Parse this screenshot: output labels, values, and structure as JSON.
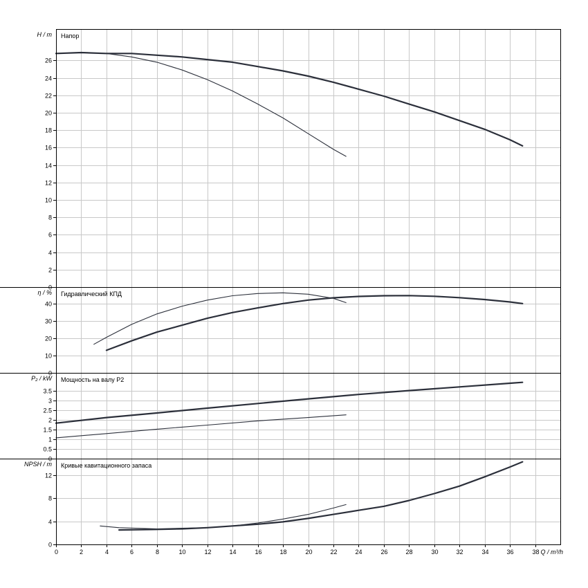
{
  "chart_data": {
    "type": "line",
    "colors": {
      "thick": "#2b2f3a",
      "thin": "#2b2f3a"
    },
    "x_axis": {
      "label": "Q / m³/h",
      "range": [
        0,
        40
      ],
      "ticks": [
        0,
        2,
        4,
        6,
        8,
        10,
        12,
        14,
        16,
        18,
        20,
        22,
        24,
        26,
        28,
        30,
        32,
        34,
        36,
        38
      ]
    },
    "panels": [
      {
        "id": "head",
        "title": "Напор",
        "ylabel": "H / m",
        "ylim": [
          0,
          29.6
        ],
        "ticks": [
          0,
          2,
          4,
          6,
          8,
          10,
          12,
          14,
          16,
          18,
          20,
          22,
          24,
          26
        ],
        "series": [
          {
            "style": "thick",
            "points": [
              [
                0,
                26.8
              ],
              [
                2,
                26.9
              ],
              [
                4,
                26.8
              ],
              [
                6,
                26.8
              ],
              [
                8,
                26.6
              ],
              [
                10,
                26.4
              ],
              [
                12,
                26.1
              ],
              [
                14,
                25.8
              ],
              [
                16,
                25.3
              ],
              [
                18,
                24.8
              ],
              [
                20,
                24.2
              ],
              [
                22,
                23.5
              ],
              [
                24,
                22.7
              ],
              [
                26,
                21.9
              ],
              [
                28,
                21.0
              ],
              [
                30,
                20.1
              ],
              [
                32,
                19.1
              ],
              [
                34,
                18.1
              ],
              [
                36,
                16.9
              ],
              [
                37,
                16.2
              ]
            ]
          },
          {
            "style": "thin",
            "points": [
              [
                4,
                26.8
              ],
              [
                6,
                26.4
              ],
              [
                8,
                25.8
              ],
              [
                10,
                24.9
              ],
              [
                12,
                23.8
              ],
              [
                14,
                22.5
              ],
              [
                16,
                21.0
              ],
              [
                18,
                19.4
              ],
              [
                20,
                17.6
              ],
              [
                22,
                15.8
              ],
              [
                23,
                15.0
              ]
            ]
          }
        ]
      },
      {
        "id": "efficiency",
        "title": "Гидравлический КПД",
        "ylabel": "η / %",
        "ylim": [
          0,
          49.5
        ],
        "ticks": [
          0,
          10,
          20,
          30,
          40
        ],
        "series": [
          {
            "style": "thick",
            "points": [
              [
                4,
                13
              ],
              [
                6,
                18.5
              ],
              [
                8,
                23.5
              ],
              [
                10,
                27.5
              ],
              [
                12,
                31.5
              ],
              [
                14,
                34.8
              ],
              [
                16,
                37.5
              ],
              [
                18,
                40
              ],
              [
                20,
                42
              ],
              [
                22,
                43.3
              ],
              [
                24,
                44.1
              ],
              [
                26,
                44.5
              ],
              [
                28,
                44.6
              ],
              [
                30,
                44.2
              ],
              [
                32,
                43.4
              ],
              [
                34,
                42.3
              ],
              [
                36,
                40.9
              ],
              [
                37,
                40
              ]
            ]
          },
          {
            "style": "thin",
            "points": [
              [
                3,
                16.5
              ],
              [
                4,
                20.5
              ],
              [
                6,
                28
              ],
              [
                8,
                34
              ],
              [
                10,
                38.5
              ],
              [
                12,
                42
              ],
              [
                14,
                44.5
              ],
              [
                16,
                45.8
              ],
              [
                18,
                46.2
              ],
              [
                20,
                45.4
              ],
              [
                22,
                43
              ],
              [
                23,
                40.5
              ]
            ]
          }
        ]
      },
      {
        "id": "power",
        "title": "Мощность на валу P2",
        "ylabel": "P₂ / kW",
        "ylim": [
          0,
          4.45
        ],
        "ticks": [
          0,
          0.5,
          1,
          1.5,
          2,
          2.5,
          3,
          3.5
        ],
        "tick_labels": [
          "0",
          "0.5",
          "1",
          "1.5",
          "2",
          "2.5",
          "3",
          "3.5"
        ],
        "series": [
          {
            "style": "thick",
            "points": [
              [
                0,
                1.84
              ],
              [
                4,
                2.13
              ],
              [
                8,
                2.37
              ],
              [
                12,
                2.62
              ],
              [
                16,
                2.86
              ],
              [
                20,
                3.1
              ],
              [
                24,
                3.33
              ],
              [
                28,
                3.53
              ],
              [
                32,
                3.72
              ],
              [
                36,
                3.91
              ],
              [
                37,
                3.96
              ]
            ]
          },
          {
            "style": "thin",
            "points": [
              [
                0,
                1.08
              ],
              [
                4,
                1.3
              ],
              [
                8,
                1.53
              ],
              [
                12,
                1.74
              ],
              [
                16,
                1.96
              ],
              [
                20,
                2.13
              ],
              [
                23,
                2.27
              ]
            ]
          }
        ]
      },
      {
        "id": "npsh",
        "title": "Кривые кавитационного запаса",
        "ylabel": "NPSH / m",
        "ylim": [
          0,
          14.85
        ],
        "ticks": [
          0,
          4,
          8,
          12
        ],
        "series": [
          {
            "style": "thick",
            "points": [
              [
                5,
                2.5
              ],
              [
                8,
                2.6
              ],
              [
                10,
                2.7
              ],
              [
                12,
                2.9
              ],
              [
                14,
                3.2
              ],
              [
                16,
                3.5
              ],
              [
                18,
                3.9
              ],
              [
                20,
                4.5
              ],
              [
                22,
                5.2
              ],
              [
                24,
                5.9
              ],
              [
                26,
                6.6
              ],
              [
                28,
                7.6
              ],
              [
                30,
                8.8
              ],
              [
                32,
                10.1
              ],
              [
                34,
                11.7
              ],
              [
                36,
                13.4
              ],
              [
                37,
                14.3
              ]
            ]
          },
          {
            "style": "thin",
            "points": [
              [
                3.5,
                3.2
              ],
              [
                5,
                2.9
              ],
              [
                8,
                2.7
              ],
              [
                10,
                2.8
              ],
              [
                12,
                2.9
              ],
              [
                14,
                3.2
              ],
              [
                16,
                3.7
              ],
              [
                18,
                4.4
              ],
              [
                20,
                5.2
              ],
              [
                22,
                6.3
              ],
              [
                23,
                6.9
              ]
            ]
          }
        ]
      }
    ]
  }
}
